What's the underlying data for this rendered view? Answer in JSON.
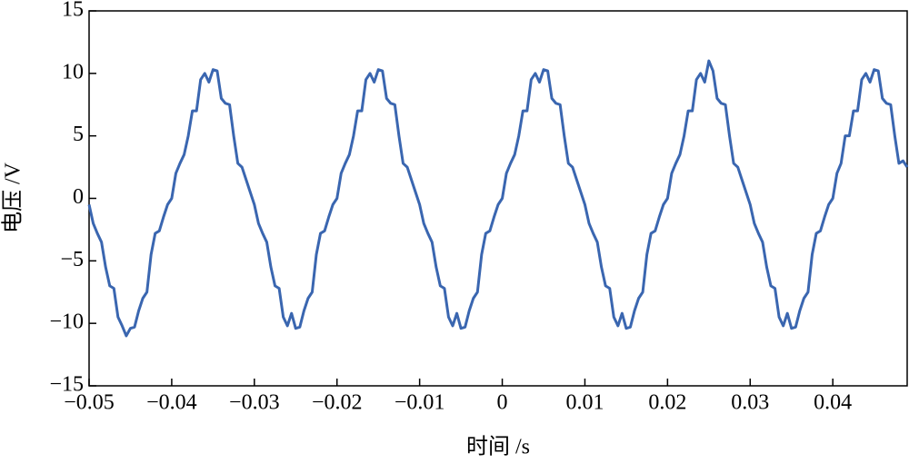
{
  "chart_data": {
    "type": "line",
    "xlabel": "时间 /s",
    "ylabel": "电压 /V",
    "color": "#3a66b0",
    "xlim": [
      -0.05,
      0.049
    ],
    "ylim": [
      -15,
      15
    ],
    "xticks": [
      {
        "value": -0.05,
        "label": "−0.05"
      },
      {
        "value": -0.04,
        "label": "−0.04"
      },
      {
        "value": -0.03,
        "label": "−0.03"
      },
      {
        "value": -0.02,
        "label": "−0.02"
      },
      {
        "value": -0.01,
        "label": "−0.01"
      },
      0,
      0.01,
      0.02,
      0.03,
      0.04
    ],
    "yticks": [
      {
        "value": -15,
        "label": "−15"
      },
      {
        "value": -10,
        "label": "−10"
      },
      {
        "value": -5,
        "label": "−5"
      },
      0,
      5,
      10,
      15
    ],
    "x": [
      -0.05,
      -0.0495,
      -0.049,
      -0.0485,
      -0.048,
      -0.0475,
      -0.047,
      -0.0465,
      -0.046,
      -0.0455,
      -0.045,
      -0.0445,
      -0.044,
      -0.0435,
      -0.043,
      -0.0425,
      -0.042,
      -0.0415,
      -0.041,
      -0.0405,
      -0.04,
      -0.0395,
      -0.039,
      -0.0385,
      -0.038,
      -0.0375,
      -0.037,
      -0.0365,
      -0.036,
      -0.0355,
      -0.035,
      -0.0345,
      -0.034,
      -0.0335,
      -0.033,
      -0.0325,
      -0.032,
      -0.0315,
      -0.031,
      -0.0305,
      -0.03,
      -0.0295,
      -0.029,
      -0.0285,
      -0.028,
      -0.0275,
      -0.027,
      -0.0265,
      -0.026,
      -0.0255,
      -0.025,
      -0.0245,
      -0.024,
      -0.0235,
      -0.023,
      -0.0225,
      -0.022,
      -0.0215,
      -0.021,
      -0.0205,
      -0.02,
      -0.0195,
      -0.019,
      -0.0185,
      -0.018,
      -0.0175,
      -0.017,
      -0.0165,
      -0.016,
      -0.0155,
      -0.015,
      -0.0145,
      -0.014,
      -0.0135,
      -0.013,
      -0.0125,
      -0.012,
      -0.0115,
      -0.011,
      -0.0105,
      -0.01,
      -0.0095,
      -0.009,
      -0.0085,
      -0.008,
      -0.0075,
      -0.007,
      -0.0065,
      -0.006,
      -0.0055,
      -0.005,
      -0.0045,
      -0.004,
      -0.0035,
      -0.003,
      -0.0025,
      -0.002,
      -0.0015,
      -0.001,
      -0.0005,
      0,
      0.0005,
      0.001,
      0.0015,
      0.002,
      0.0025,
      0.003,
      0.0035,
      0.004,
      0.0045,
      0.005,
      0.0055,
      0.006,
      0.0065,
      0.007,
      0.0075,
      0.008,
      0.0085,
      0.009,
      0.0095,
      0.01,
      0.0105,
      0.011,
      0.0115,
      0.012,
      0.0125,
      0.013,
      0.0135,
      0.014,
      0.0145,
      0.015,
      0.0155,
      0.016,
      0.0165,
      0.017,
      0.0175,
      0.018,
      0.0185,
      0.019,
      0.0195,
      0.02,
      0.0205,
      0.021,
      0.0215,
      0.022,
      0.0225,
      0.023,
      0.0235,
      0.024,
      0.0245,
      0.025,
      0.0255,
      0.026,
      0.0265,
      0.027,
      0.0275,
      0.028,
      0.0285,
      0.029,
      0.0295,
      0.03,
      0.0305,
      0.031,
      0.0315,
      0.032,
      0.0325,
      0.033,
      0.0335,
      0.034,
      0.0345,
      0.035,
      0.0355,
      0.036,
      0.0365,
      0.037,
      0.0375,
      0.038,
      0.0385,
      0.039,
      0.0395,
      0.04,
      0.0405,
      0.041,
      0.0415,
      0.042,
      0.0425,
      0.043,
      0.0435,
      0.044,
      0.0445,
      0.045,
      0.0455,
      0.046,
      0.0465,
      0.047,
      0.0475,
      0.048,
      0.0485,
      0.049
    ],
    "values": [
      -0.5,
      -2,
      -2.8,
      -3.5,
      -5.5,
      -7,
      -7.2,
      -9.5,
      -10.2,
      -11,
      -10.4,
      -10.3,
      -9,
      -8,
      -7.5,
      -4.5,
      -2.8,
      -2.6,
      -1.5,
      -0.5,
      0,
      2,
      2.8,
      3.5,
      5,
      7,
      7,
      9.5,
      10,
      9.3,
      10.3,
      10.2,
      8,
      7.6,
      7.5,
      5,
      2.8,
      2.5,
      1.5,
      0.5,
      -0.5,
      -2,
      -2.8,
      -3.5,
      -5.5,
      -7,
      -7.2,
      -9.5,
      -10.2,
      -9.2,
      -10.4,
      -10.3,
      -9,
      -8,
      -7.5,
      -4.5,
      -2.8,
      -2.6,
      -1.5,
      -0.5,
      0,
      2,
      2.8,
      3.5,
      5,
      7,
      7,
      9.5,
      10,
      9.3,
      10.3,
      10.2,
      8,
      7.6,
      7.5,
      5,
      2.8,
      2.5,
      1.5,
      0.5,
      -0.5,
      -2,
      -2.8,
      -3.5,
      -5.5,
      -7,
      -7.2,
      -9.5,
      -10.2,
      -9.2,
      -10.4,
      -10.3,
      -9,
      -8,
      -7.5,
      -4.5,
      -2.8,
      -2.6,
      -1.5,
      -0.5,
      0,
      2,
      2.8,
      3.5,
      5,
      7,
      7,
      9.5,
      10,
      9.3,
      10.3,
      10.2,
      8,
      7.6,
      7.5,
      5,
      2.8,
      2.5,
      1.5,
      0.5,
      -0.5,
      -2,
      -2.8,
      -3.5,
      -5.5,
      -7,
      -7.2,
      -9.5,
      -10.2,
      -9.2,
      -10.4,
      -10.3,
      -9,
      -8,
      -7.5,
      -4.5,
      -2.8,
      -2.6,
      -1.5,
      -0.5,
      0,
      2,
      2.8,
      3.5,
      5,
      7,
      7,
      9.5,
      10,
      9.3,
      11,
      10.2,
      8,
      7.6,
      7.5,
      5,
      2.8,
      2.5,
      1.5,
      0.5,
      -0.5,
      -2,
      -2.8,
      -3.5,
      -5.5,
      -7,
      -7.2,
      -9.5,
      -10.2,
      -9.2,
      -10.4,
      -10.3,
      -9,
      -8,
      -7.5,
      -4.5,
      -2.8,
      -2.6,
      -1.5,
      -0.5,
      0,
      2,
      2.8,
      5,
      5,
      7,
      7,
      9.5,
      10,
      9.3,
      10.3,
      10.2,
      8,
      7.6,
      7.5,
      5,
      2.8,
      3,
      2.5
    ]
  }
}
